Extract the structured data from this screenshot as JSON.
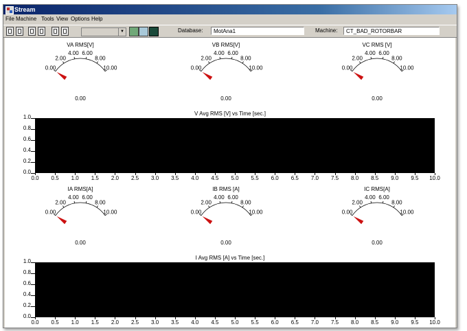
{
  "window": {
    "title": "Stream"
  },
  "menu": [
    "File",
    "Machine",
    "Tools",
    "View",
    "Options",
    "Help"
  ],
  "toolbar": {
    "database_label": "Database:",
    "database_value": "MotAna1",
    "machine_label": "Machine:",
    "machine_value": "CT_BAD_ROTORBAR"
  },
  "gauges": [
    {
      "label": "VA RMS[V]",
      "value": 0.0,
      "readout": "0.00",
      "ticks": [
        "0.00",
        "2.00",
        "4.00",
        "6.00",
        "8.00",
        "10.00"
      ],
      "min": 0,
      "max": 10
    },
    {
      "label": "VB RMS[V]",
      "value": 0.0,
      "readout": "0.00",
      "ticks": [
        "0.00",
        "2.00",
        "4.00",
        "6.00",
        "8.00",
        "10.00"
      ],
      "min": 0,
      "max": 10
    },
    {
      "label": "VC RMS [V]",
      "value": 0.0,
      "readout": "0.00",
      "ticks": [
        "0.00",
        "2.00",
        "4.00",
        "6.00",
        "8.00",
        "10.00"
      ],
      "min": 0,
      "max": 10
    },
    {
      "label": "IA RMS[A]",
      "value": 0.0,
      "readout": "0.00",
      "ticks": [
        "0.00",
        "2.00",
        "4.00",
        "6.00",
        "8.00",
        "10.00"
      ],
      "min": 0,
      "max": 10
    },
    {
      "label": "IB RMS [A]",
      "value": 0.0,
      "readout": "0.00",
      "ticks": [
        "0.00",
        "2.00",
        "4.00",
        "6.00",
        "8.00",
        "10.00"
      ],
      "min": 0,
      "max": 10
    },
    {
      "label": "IC RMS[A]",
      "value": 0.0,
      "readout": "0.00",
      "ticks": [
        "0.00",
        "2.00",
        "4.00",
        "6.00",
        "8.00",
        "10.00"
      ],
      "min": 0,
      "max": 10
    }
  ],
  "charts": [
    {
      "title": "V Avg RMS [V] vs Time [sec.]",
      "yticks": [
        "1.0",
        "0.8",
        "0.6",
        "0.4",
        "0.2",
        "0.0"
      ],
      "xticks": [
        "0.0",
        "0.5",
        "1.0",
        "1.5",
        "2.0",
        "2.5",
        "3.0",
        "3.5",
        "4.0",
        "4.5",
        "5.0",
        "5.5",
        "6.0",
        "6.5",
        "7.0",
        "7.5",
        "8.0",
        "8.5",
        "9.0",
        "9.5",
        "10.0"
      ]
    },
    {
      "title": "I Avg RMS [A] vs Time [sec.]",
      "yticks": [
        "1.0",
        "0.8",
        "0.6",
        "0.4",
        "0.2",
        "0.0"
      ],
      "xticks": [
        "0.0",
        "0.5",
        "1.0",
        "1.5",
        "2.0",
        "2.5",
        "3.0",
        "3.5",
        "4.0",
        "4.5",
        "5.0",
        "5.5",
        "6.0",
        "6.5",
        "7.0",
        "7.5",
        "8.0",
        "8.5",
        "9.0",
        "9.5",
        "10.0"
      ]
    }
  ],
  "chart_data": [
    {
      "type": "line",
      "title": "V Avg RMS [V] vs Time [sec.]",
      "xlim": [
        0,
        10
      ],
      "ylim": [
        0,
        1
      ],
      "series": [],
      "grid": false
    },
    {
      "type": "line",
      "title": "I Avg RMS [A] vs Time [sec.]",
      "xlim": [
        0,
        10
      ],
      "ylim": [
        0,
        1
      ],
      "series": [],
      "grid": false
    }
  ],
  "colors": {
    "needle": "#cc1111",
    "plot_background": "#000000",
    "titlebar": "#0a246a"
  }
}
